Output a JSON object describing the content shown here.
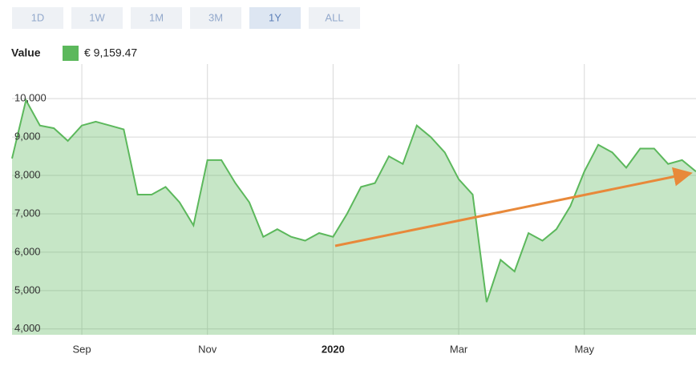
{
  "range_buttons": [
    "1D",
    "1W",
    "1M",
    "3M",
    "1Y",
    "ALL"
  ],
  "selected_range": "1Y",
  "chart_data": {
    "type": "area",
    "legend_label": "€ 9,159.47",
    "categories": [
      null,
      null,
      null,
      null,
      null,
      "Sep",
      null,
      null,
      null,
      null,
      null,
      null,
      null,
      null,
      "Nov",
      null,
      null,
      null,
      null,
      null,
      null,
      null,
      null,
      "2020",
      null,
      null,
      null,
      null,
      null,
      null,
      null,
      null,
      "Mar",
      null,
      null,
      null,
      null,
      null,
      null,
      null,
      null,
      "May",
      null,
      null,
      null,
      null,
      null,
      null,
      null,
      null
    ],
    "series": [
      {
        "name": "Value",
        "color": "#5cb85c",
        "values": [
          8440,
          9960,
          9300,
          9230,
          8900,
          9300,
          9400,
          9300,
          9200,
          7500,
          7500,
          7700,
          7300,
          6700,
          8400,
          8400,
          7800,
          7300,
          6400,
          6600,
          6400,
          6300,
          6500,
          6400,
          7000,
          7700,
          7800,
          8500,
          8300,
          9300,
          9000,
          8600,
          7900,
          7500,
          4700,
          5800,
          5500,
          6500,
          6300,
          6600,
          7200,
          8100,
          8800,
          8600,
          8200,
          8700,
          8700,
          8300,
          8400,
          8100
        ]
      }
    ],
    "ylim": [
      3850,
      10900
    ],
    "yticks": [
      {
        "value": 4000,
        "label": "4,000"
      },
      {
        "value": 5000,
        "label": "5,000"
      },
      {
        "value": 6000,
        "label": "6,000"
      },
      {
        "value": 7000,
        "label": "7,000"
      },
      {
        "value": 8000,
        "label": "8,000"
      },
      {
        "value": 9000,
        "label": "9,000"
      },
      {
        "value": 10000,
        "label": "10,000"
      }
    ],
    "grid": true
  }
}
